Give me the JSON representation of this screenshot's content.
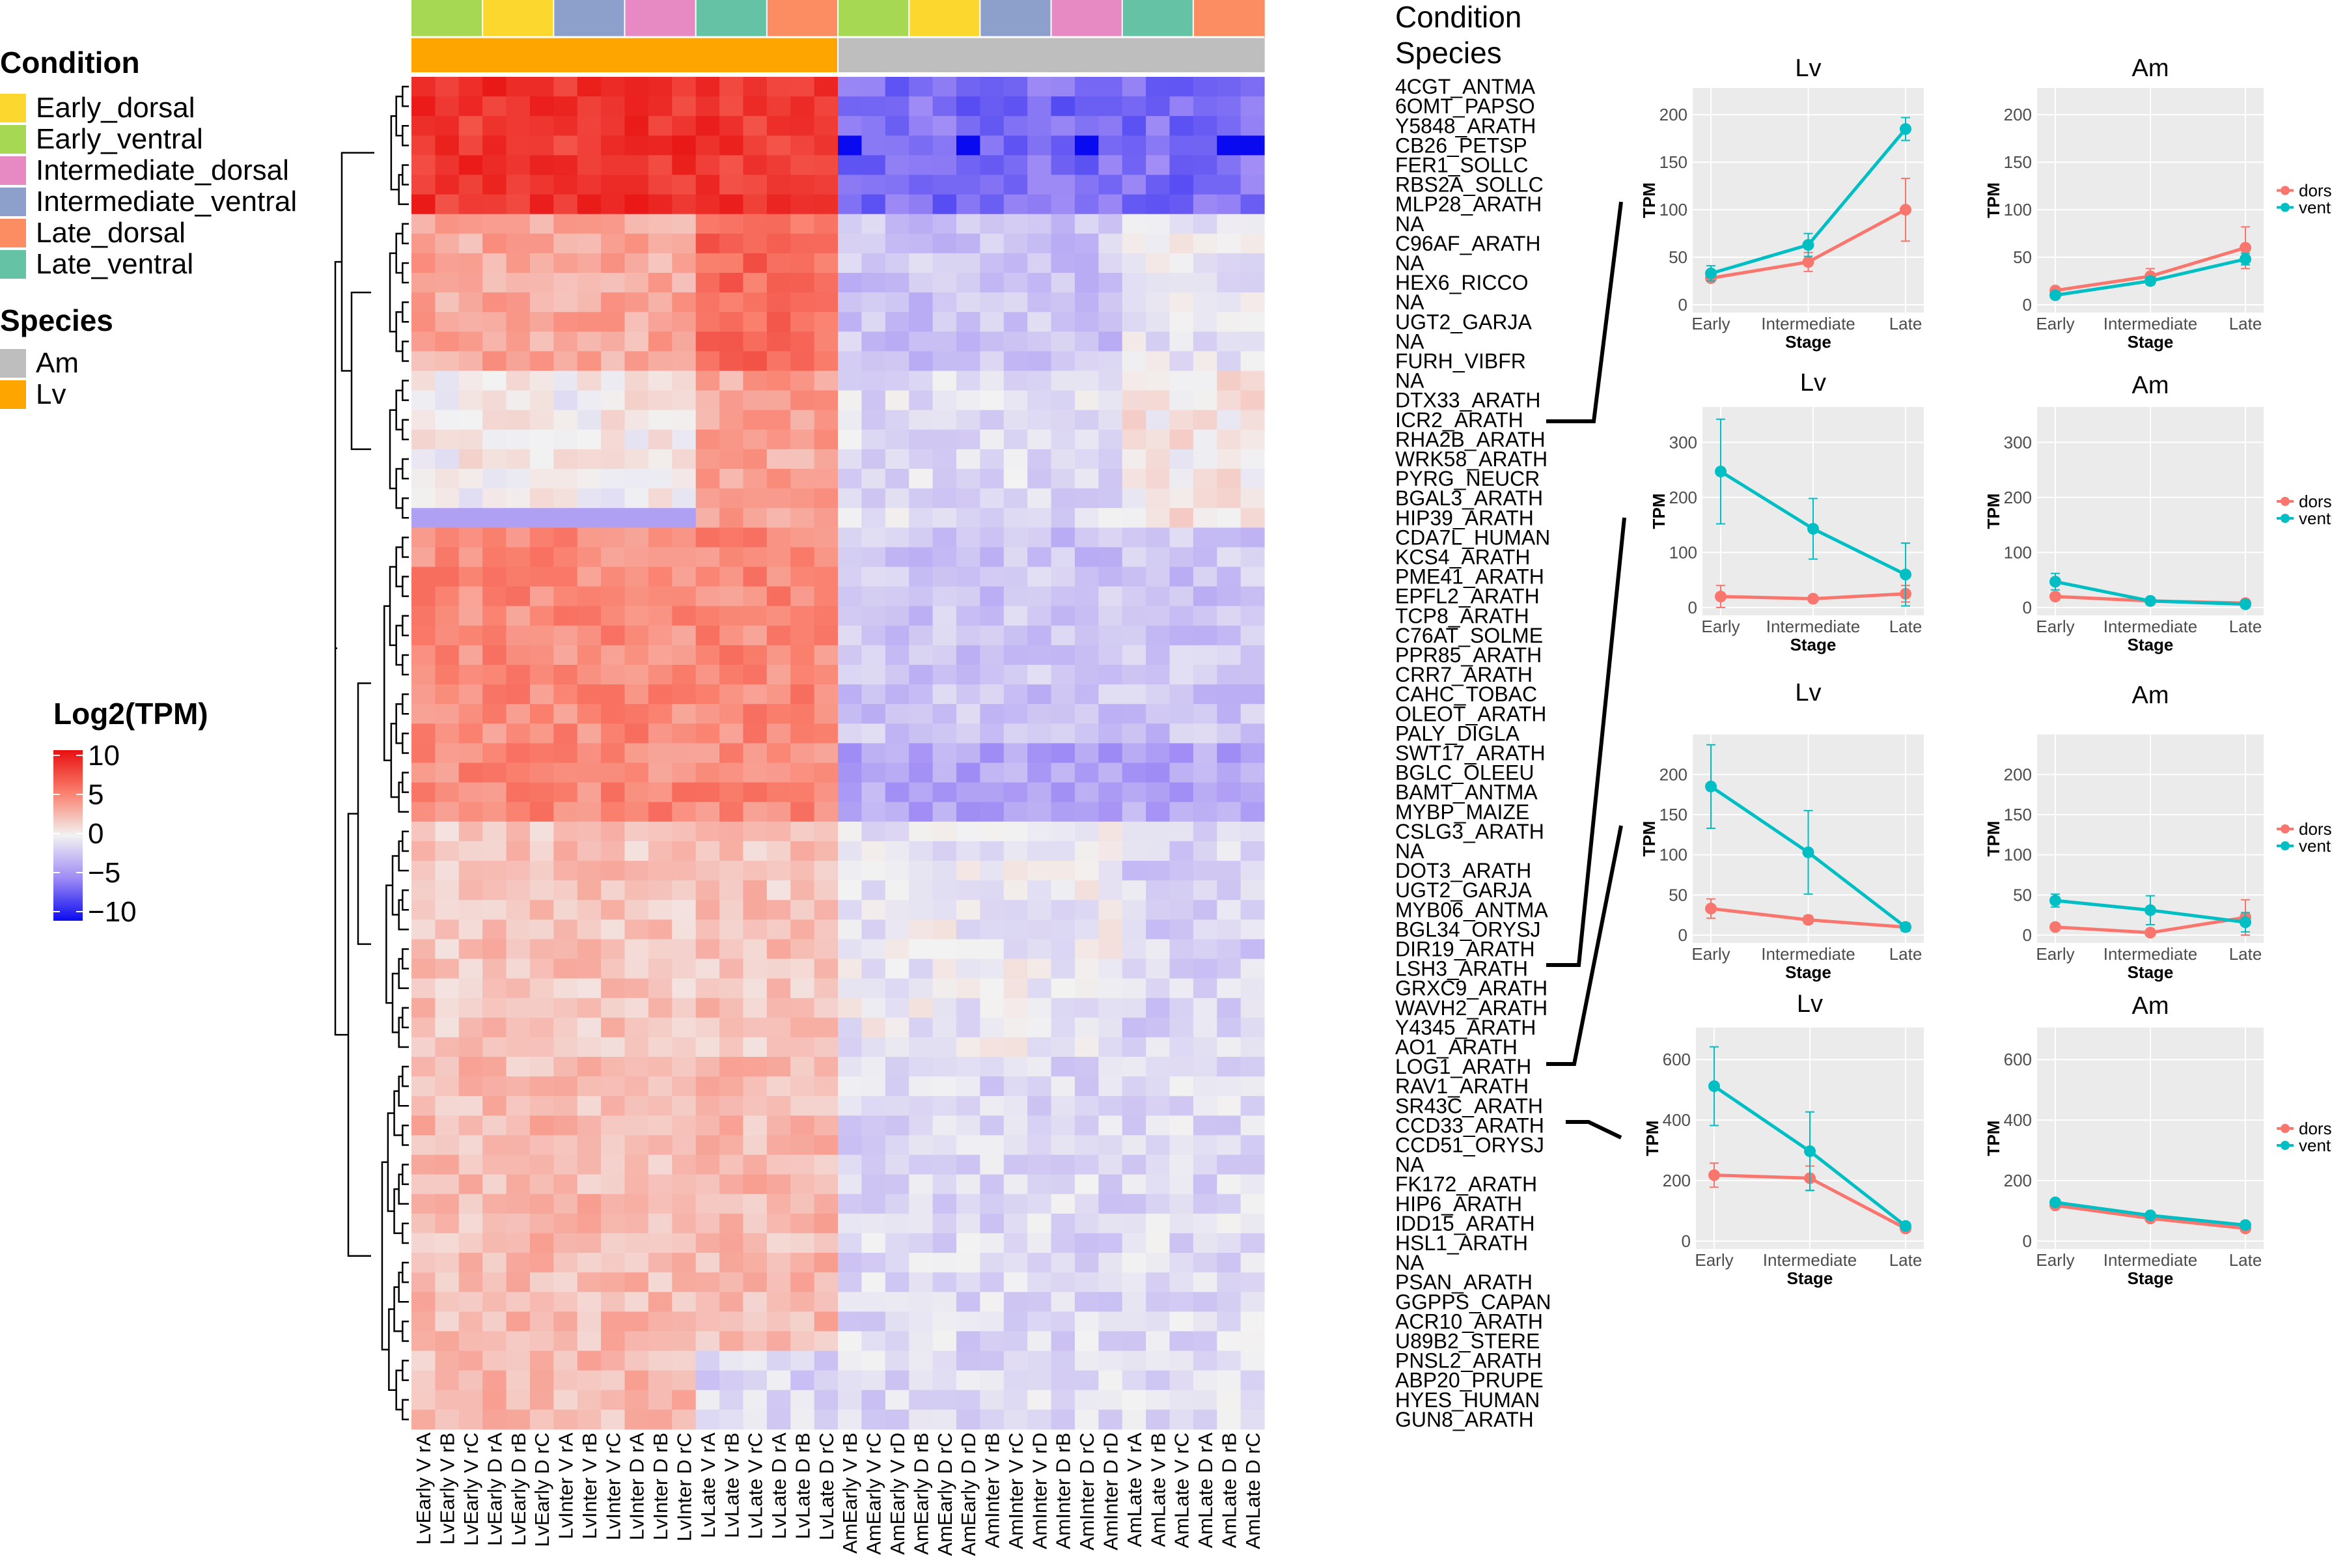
{
  "legend": {
    "condition_title": "Condition",
    "conditions": [
      {
        "label": "Early_dorsal",
        "color": "#fcd82f"
      },
      {
        "label": "Early_ventral",
        "color": "#a6d854"
      },
      {
        "label": "Intermediate_dorsal",
        "color": "#e78ac3"
      },
      {
        "label": "Intermediate_ventral",
        "color": "#8da0cb"
      },
      {
        "label": "Late_dorsal",
        "color": "#fc8d62"
      },
      {
        "label": "Late_ventral",
        "color": "#66c2a5"
      }
    ],
    "species_title": "Species",
    "species": [
      {
        "label": "Am",
        "color": "#bebebe"
      },
      {
        "label": "Lv",
        "color": "#ffa500"
      }
    ],
    "scale_title": "Log2(TPM)",
    "scale_ticks": [
      "10",
      "5",
      "0",
      "−5",
      "−10"
    ]
  },
  "annotation": {
    "condition_label": "Condition",
    "species_label": "Species"
  },
  "chart_data": [
    {
      "type": "heatmap",
      "title": "",
      "value_label": "Log2(TPM)",
      "value_range": [
        -10,
        10
      ],
      "columns": [
        "LvEarly V rA",
        "LvEarly V rB",
        "LvEarly V rC",
        "LvEarly D rA",
        "LvEarly D rB",
        "LvEarly D rC",
        "LvInter V rA",
        "LvInter V rB",
        "LvInter V rC",
        "LvInter D rA",
        "LvInter D rB",
        "LvInter D rC",
        "LvLate V rA",
        "LvLate V rB",
        "LvLate V rC",
        "LvLate D rA",
        "LvLate D rB",
        "LvLate D rC",
        "AmEarly V rB",
        "AmEarly V rC",
        "AmEarly V rD",
        "AmEarly D rB",
        "AmEarly D rC",
        "AmEarly D rD",
        "AmInter V rB",
        "AmInter V rC",
        "AmInter V rD",
        "AmInter D rB",
        "AmInter D rC",
        "AmInter D rD",
        "AmLate V rA",
        "AmLate V rB",
        "AmLate V rC",
        "AmLate D rA",
        "AmLate D rB",
        "AmLate D rC"
      ],
      "column_condition": [
        "Early_ventral",
        "Early_ventral",
        "Early_ventral",
        "Early_dorsal",
        "Early_dorsal",
        "Early_dorsal",
        "Intermediate_ventral",
        "Intermediate_ventral",
        "Intermediate_ventral",
        "Intermediate_dorsal",
        "Intermediate_dorsal",
        "Intermediate_dorsal",
        "Late_ventral",
        "Late_ventral",
        "Late_ventral",
        "Late_dorsal",
        "Late_dorsal",
        "Late_dorsal",
        "Early_ventral",
        "Early_ventral",
        "Early_ventral",
        "Early_dorsal",
        "Early_dorsal",
        "Early_dorsal",
        "Intermediate_ventral",
        "Intermediate_ventral",
        "Intermediate_ventral",
        "Intermediate_dorsal",
        "Intermediate_dorsal",
        "Intermediate_dorsal",
        "Late_ventral",
        "Late_ventral",
        "Late_ventral",
        "Late_dorsal",
        "Late_dorsal",
        "Late_dorsal"
      ],
      "column_species": [
        "Lv",
        "Lv",
        "Lv",
        "Lv",
        "Lv",
        "Lv",
        "Lv",
        "Lv",
        "Lv",
        "Lv",
        "Lv",
        "Lv",
        "Lv",
        "Lv",
        "Lv",
        "Lv",
        "Lv",
        "Lv",
        "Am",
        "Am",
        "Am",
        "Am",
        "Am",
        "Am",
        "Am",
        "Am",
        "Am",
        "Am",
        "Am",
        "Am",
        "Am",
        "Am",
        "Am",
        "Am",
        "Am",
        "Am"
      ],
      "rows": [
        "4CGT_ANTMA",
        "6OMT_PAPSO",
        "Y5848_ARATH",
        "CB26_PETSP",
        "FER1_SOLLC",
        "RBS2A_SOLLC",
        "MLP28_ARATH",
        "NA",
        "C96AF_ARATH",
        "NA",
        "HEX6_RICCO",
        "NA",
        "UGT2_GARJA",
        "NA",
        "FURH_VIBFR",
        "NA",
        "DTX33_ARATH",
        "ICR2_ARATH",
        "RHA2B_ARATH",
        "WRK58_ARATH",
        "PYRG_NEUCR",
        "BGAL3_ARATH",
        "HIP39_ARATH",
        "CDA7L_HUMAN",
        "KCS4_ARATH",
        "PME41_ARATH",
        "EPFL2_ARATH",
        "TCP8_ARATH",
        "C76AT_SOLME",
        "PPR85_ARATH",
        "CRR7_ARATH",
        "CAHC_TOBAC",
        "OLEOT_ARATH",
        "PALY_DIGLA",
        "SWT17_ARATH",
        "BGLC_OLEEU",
        "BAMT_ANTMA",
        "MYBP_MAIZE",
        "CSLG3_ARATH",
        "NA",
        "DOT3_ARATH",
        "UGT2_GARJA",
        "MYB06_ANTMA",
        "BGL34_ORYSJ",
        "DIR19_ARATH",
        "LSH3_ARATH",
        "GRXC9_ARATH",
        "WAVH2_ARATH",
        "Y4345_ARATH",
        "AO1_ARATH",
        "LOG1_ARATH",
        "RAV1_ARATH",
        "SR43C_ARATH",
        "CCD33_ARATH",
        "CCD51_ORYSJ",
        "NA",
        "FK172_ARATH",
        "HIP6_ARATH",
        "IDD15_ARATH",
        "HSL1_ARATH",
        "NA",
        "PSAN_ARATH",
        "GGPPS_CAPAN",
        "ACR10_ARATH",
        "U89B2_STERE",
        "PNSL2_ARATH",
        "ABP20_PRUPE",
        "HYES_HUMAN",
        "GUN8_ARATH"
      ],
      "row_group_profile": [
        {
          "rows": "4CGT_ANTMA..MLP28_ARATH",
          "Lv": 8.5,
          "Am": -6
        },
        {
          "rows": "NA..FURH_VIBFR",
          "Lv_early_inter": 3,
          "Lv_late": 6,
          "Am": -2
        },
        {
          "rows": "NA..HIP39_ARATH",
          "Lv_early_inter": 0,
          "Lv_late": 3,
          "Am": -1
        },
        {
          "rows": "CDA7L_HUMAN..MYBP_MAIZE",
          "Lv": 4.5,
          "Am": -2.5
        },
        {
          "rows": "CSLG3_ARATH..AO1_ARATH",
          "Lv": 2,
          "Am": -0.5
        },
        {
          "rows": "LOG1_ARATH..GUN8_ARATH",
          "Lv": 2.5,
          "Am": -1
        }
      ]
    },
    {
      "type": "line",
      "title": "Lv",
      "gene": "ICR2_ARATH",
      "categories": [
        "Early",
        "Intermediate",
        "Late"
      ],
      "xlabel": "Stage",
      "ylabel": "TPM",
      "ylim": [
        0,
        220
      ],
      "yticks": [
        0,
        50,
        100,
        150,
        200
      ],
      "series": [
        {
          "name": "dorsal",
          "color": "#f8766d",
          "values": [
            28,
            45,
            100
          ],
          "err": [
            3,
            10,
            33
          ]
        },
        {
          "name": "ventral",
          "color": "#00bfc4",
          "values": [
            33,
            63,
            185
          ],
          "err": [
            8,
            12,
            12
          ]
        }
      ],
      "legend": [
        "dorsal",
        "ventral"
      ]
    },
    {
      "type": "line",
      "title": "Am",
      "gene": "ICR2_ARATH",
      "categories": [
        "Early",
        "Intermediate",
        "Late"
      ],
      "xlabel": "Stage",
      "ylabel": "TPM",
      "ylim": [
        0,
        220
      ],
      "yticks": [
        0,
        50,
        100,
        150,
        200
      ],
      "series": [
        {
          "name": "dorsal",
          "color": "#f8766d",
          "values": [
            15,
            30,
            60
          ],
          "err": [
            3,
            8,
            22
          ]
        },
        {
          "name": "ventral",
          "color": "#00bfc4",
          "values": [
            10,
            25,
            48
          ],
          "err": [
            2,
            4,
            6
          ]
        }
      ],
      "legend": [
        "dorsal",
        "ventral"
      ]
    },
    {
      "type": "line",
      "title": "Lv",
      "gene": "LSH3_ARATH",
      "categories": [
        "Early",
        "Intermediate",
        "Late"
      ],
      "xlabel": "Stage",
      "ylabel": "TPM",
      "ylim": [
        0,
        350
      ],
      "yticks": [
        0,
        100,
        200,
        300
      ],
      "series": [
        {
          "name": "dorsal",
          "color": "#f8766d",
          "values": [
            20,
            16,
            25
          ],
          "err": [
            20,
            5,
            15
          ]
        },
        {
          "name": "ventral",
          "color": "#00bfc4",
          "values": [
            247,
            143,
            60
          ],
          "err": [
            95,
            55,
            57
          ]
        }
      ],
      "legend": [
        "dorsal",
        "ventral"
      ]
    },
    {
      "type": "line",
      "title": "Am",
      "gene": "LSH3_ARATH",
      "categories": [
        "Early",
        "Intermediate",
        "Late"
      ],
      "xlabel": "Stage",
      "ylabel": "TPM",
      "ylim": [
        0,
        350
      ],
      "yticks": [
        0,
        100,
        200,
        300
      ],
      "series": [
        {
          "name": "dorsal",
          "color": "#f8766d",
          "values": [
            20,
            12,
            8
          ],
          "err": [
            5,
            3,
            4
          ]
        },
        {
          "name": "ventral",
          "color": "#00bfc4",
          "values": [
            47,
            12,
            6
          ],
          "err": [
            15,
            3,
            3
          ]
        }
      ],
      "legend": [
        "dorsal",
        "ventral"
      ]
    },
    {
      "type": "line",
      "title": "Lv",
      "gene": "LOG1_ARATH",
      "categories": [
        "Early",
        "Intermediate",
        "Late"
      ],
      "xlabel": "Stage",
      "ylabel": "TPM",
      "ylim": [
        0,
        240
      ],
      "yticks": [
        0,
        50,
        100,
        150,
        200
      ],
      "series": [
        {
          "name": "dorsal",
          "color": "#f8766d",
          "values": [
            33,
            19,
            10
          ],
          "err": [
            12,
            5,
            3
          ]
        },
        {
          "name": "ventral",
          "color": "#00bfc4",
          "values": [
            185,
            103,
            10
          ],
          "err": [
            52,
            52,
            5
          ]
        }
      ],
      "legend": [
        "dorsal",
        "ventral"
      ]
    },
    {
      "type": "line",
      "title": "Am",
      "gene": "LOG1_ARATH",
      "categories": [
        "Early",
        "Intermediate",
        "Late"
      ],
      "xlabel": "Stage",
      "ylabel": "TPM",
      "ylim": [
        0,
        240
      ],
      "yticks": [
        0,
        50,
        100,
        150,
        200
      ],
      "series": [
        {
          "name": "dorsal",
          "color": "#f8766d",
          "values": [
            10,
            3,
            22
          ],
          "err": [
            2,
            2,
            22
          ]
        },
        {
          "name": "ventral",
          "color": "#00bfc4",
          "values": [
            43,
            31,
            16
          ],
          "err": [
            8,
            18,
            12
          ]
        }
      ],
      "legend": [
        "dorsal",
        "ventral"
      ]
    },
    {
      "type": "line",
      "title": "Lv",
      "gene": "CCD33_ARATH",
      "categories": [
        "Early",
        "Intermediate",
        "Late"
      ],
      "xlabel": "Stage",
      "ylabel": "TPM",
      "ylim": [
        0,
        680
      ],
      "yticks": [
        0,
        200,
        400,
        600
      ],
      "series": [
        {
          "name": "dorsal",
          "color": "#f8766d",
          "values": [
            218,
            208,
            42
          ],
          "err": [
            40,
            40,
            12
          ]
        },
        {
          "name": "ventral",
          "color": "#00bfc4",
          "values": [
            512,
            297,
            50
          ],
          "err": [
            130,
            130,
            10
          ]
        }
      ],
      "legend": [
        "dorsal",
        "ventral"
      ]
    },
    {
      "type": "line",
      "title": "Am",
      "gene": "CCD33_ARATH",
      "categories": [
        "Early",
        "Intermediate",
        "Late"
      ],
      "xlabel": "Stage",
      "ylabel": "TPM",
      "ylim": [
        0,
        680
      ],
      "yticks": [
        0,
        200,
        400,
        600
      ],
      "series": [
        {
          "name": "dorsal",
          "color": "#f8766d",
          "values": [
            118,
            75,
            42
          ],
          "err": [
            10,
            8,
            10
          ]
        },
        {
          "name": "ventral",
          "color": "#00bfc4",
          "values": [
            128,
            85,
            53
          ],
          "err": [
            10,
            8,
            8
          ]
        }
      ],
      "legend": [
        "dorsal",
        "ventral"
      ]
    }
  ]
}
